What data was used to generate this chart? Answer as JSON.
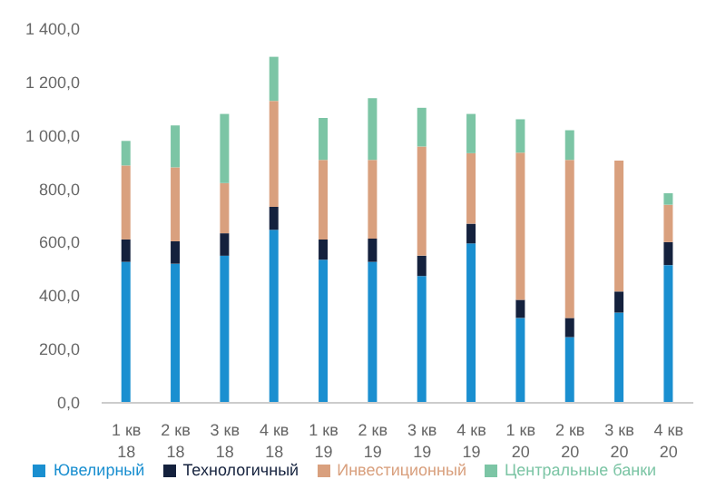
{
  "chart_data": {
    "type": "bar",
    "stacked": true,
    "categories": [
      "1 кв 18",
      "2 кв 18",
      "3 кв 18",
      "4 кв 18",
      "1 кв 19",
      "2 кв 19",
      "3 кв 19",
      "4 кв 19",
      "1 кв 20",
      "2 кв 20",
      "3 кв 20",
      "4 кв 20"
    ],
    "series": [
      {
        "name": "Ювелирный",
        "color": "#1a8fd0",
        "values": [
          528,
          521,
          551,
          648,
          536,
          528,
          475,
          597,
          318,
          246,
          338,
          516
        ]
      },
      {
        "name": "Технологичный",
        "color": "#14213d",
        "values": [
          84,
          84,
          84,
          86,
          76,
          87,
          76,
          74,
          68,
          72,
          79,
          86
        ]
      },
      {
        "name": "Инвестиционный",
        "color": "#d9a07e",
        "values": [
          277,
          277,
          188,
          397,
          298,
          295,
          409,
          264,
          551,
          592,
          490,
          140
        ]
      },
      {
        "name": "Центральные банки",
        "color": "#7cc5a5",
        "values": [
          92,
          157,
          259,
          165,
          157,
          231,
          145,
          147,
          125,
          111,
          0,
          43
        ]
      }
    ],
    "ylim": [
      0,
      1400
    ],
    "yticks": [
      {
        "value": 0,
        "label": "0,0"
      },
      {
        "value": 200,
        "label": "200,0"
      },
      {
        "value": 400,
        "label": "400,0"
      },
      {
        "value": 600,
        "label": "600,0"
      },
      {
        "value": 800,
        "label": "800,0"
      },
      {
        "value": 1000,
        "label": "1 000,0"
      },
      {
        "value": 1200,
        "label": "1 200,0"
      },
      {
        "value": 1400,
        "label": "1 400,0"
      }
    ],
    "grid": false,
    "legend": "bottom"
  }
}
